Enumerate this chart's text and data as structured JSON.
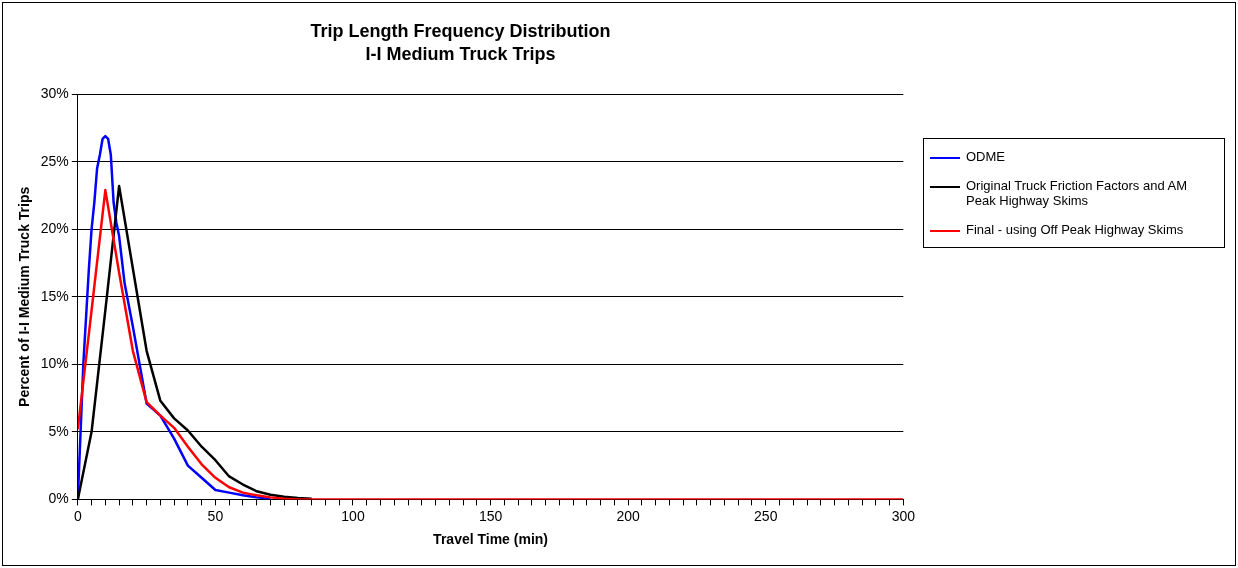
{
  "chart_data": {
    "type": "line",
    "title": "Trip Length Frequency Distribution",
    "subtitle": "I-I Medium Truck Trips",
    "xlabel": "Travel Time (min)",
    "ylabel": "Percent of I-I Medium Truck Trips",
    "series": [
      {
        "name": "ODME",
        "color": "#0000ff",
        "x": [
          0,
          2,
          4,
          5,
          6,
          7,
          8,
          9,
          10,
          11,
          12,
          13,
          14,
          15,
          17,
          20,
          25,
          30,
          35,
          40,
          45,
          50,
          55,
          60,
          65,
          70
        ],
        "values": [
          0,
          10,
          17,
          20,
          22,
          24.5,
          25.5,
          26.7,
          26.9,
          26.7,
          25.5,
          22,
          20.5,
          19.5,
          16,
          12.8,
          7.1,
          6.2,
          4.5,
          2.5,
          1.6,
          0.7,
          0.5,
          0.3,
          0.15,
          0.05
        ]
      },
      {
        "name": "Original Truck Friction Factors and AM Peak Highway Skims",
        "color": "#000000",
        "x": [
          0,
          5,
          10,
          15,
          20,
          25,
          30,
          35,
          40,
          45,
          50,
          55,
          60,
          65,
          70,
          75,
          80,
          85
        ],
        "values": [
          0,
          5,
          14,
          23.2,
          17.1,
          11,
          7.3,
          6,
          5.1,
          3.9,
          2.9,
          1.7,
          1.1,
          0.6,
          0.35,
          0.2,
          0.1,
          0.05
        ]
      },
      {
        "name": "Final - using Off Peak Highway Skims",
        "color": "#ff0000",
        "x": [
          0,
          5,
          10,
          15,
          20,
          25,
          30,
          35,
          40,
          45,
          50,
          55,
          60,
          65,
          70,
          75,
          80,
          300
        ],
        "values": [
          5.2,
          14,
          22.9,
          16.8,
          11,
          7.2,
          6.2,
          5.3,
          3.9,
          2.6,
          1.6,
          0.9,
          0.5,
          0.3,
          0.15,
          0.05,
          0,
          0
        ]
      }
    ],
    "xlim": [
      0,
      300
    ],
    "xticks": [
      0,
      {
        "value": 5,
        "label": null
      },
      {
        "value": 10,
        "label": null
      },
      {
        "value": 15,
        "label": null
      },
      {
        "value": 20,
        "label": null
      },
      {
        "value": 25,
        "label": null
      },
      {
        "value": 30,
        "label": null
      },
      {
        "value": 35,
        "label": null
      },
      {
        "value": 40,
        "label": null
      },
      {
        "value": 45,
        "label": null
      },
      50,
      {
        "value": 55,
        "label": null
      },
      {
        "value": 60,
        "label": null
      },
      {
        "value": 65,
        "label": null
      },
      {
        "value": 70,
        "label": null
      },
      {
        "value": 75,
        "label": null
      },
      {
        "value": 80,
        "label": null
      },
      {
        "value": 85,
        "label": null
      },
      {
        "value": 90,
        "label": null
      },
      {
        "value": 95,
        "label": null
      },
      100,
      {
        "value": 105,
        "label": null
      },
      {
        "value": 110,
        "label": null
      },
      {
        "value": 115,
        "label": null
      },
      {
        "value": 120,
        "label": null
      },
      {
        "value": 125,
        "label": null
      },
      {
        "value": 130,
        "label": null
      },
      {
        "value": 135,
        "label": null
      },
      {
        "value": 140,
        "label": null
      },
      {
        "value": 145,
        "label": null
      },
      150,
      {
        "value": 155,
        "label": null
      },
      {
        "value": 160,
        "label": null
      },
      {
        "value": 165,
        "label": null
      },
      {
        "value": 170,
        "label": null
      },
      {
        "value": 175,
        "label": null
      },
      {
        "value": 180,
        "label": null
      },
      {
        "value": 185,
        "label": null
      },
      {
        "value": 190,
        "label": null
      },
      {
        "value": 195,
        "label": null
      },
      200,
      {
        "value": 205,
        "label": null
      },
      {
        "value": 210,
        "label": null
      },
      {
        "value": 215,
        "label": null
      },
      {
        "value": 220,
        "label": null
      },
      {
        "value": 225,
        "label": null
      },
      {
        "value": 230,
        "label": null
      },
      {
        "value": 235,
        "label": null
      },
      {
        "value": 240,
        "label": null
      },
      {
        "value": 245,
        "label": null
      },
      250,
      {
        "value": 255,
        "label": null
      },
      {
        "value": 260,
        "label": null
      },
      {
        "value": 265,
        "label": null
      },
      {
        "value": 270,
        "label": null
      },
      {
        "value": 275,
        "label": null
      },
      {
        "value": 280,
        "label": null
      },
      {
        "value": 285,
        "label": null
      },
      {
        "value": 290,
        "label": null
      },
      {
        "value": 295,
        "label": null
      },
      300
    ],
    "ylim": [
      0,
      30
    ],
    "yticks": [
      {
        "value": 0,
        "label": "0%"
      },
      {
        "value": 5,
        "label": "5%"
      },
      {
        "value": 10,
        "label": "10%"
      },
      {
        "value": 15,
        "label": "15%"
      },
      {
        "value": 20,
        "label": "20%"
      },
      {
        "value": 25,
        "label": "25%"
      },
      {
        "value": 30,
        "label": "30%"
      }
    ],
    "grid": "y",
    "legend": "right",
    "marker": "none",
    "line_style": "solid"
  }
}
